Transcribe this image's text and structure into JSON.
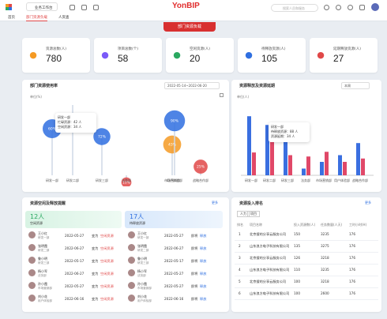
{
  "topbar": {
    "brand": "YonBIP",
    "search_placeholder": "搜索人员和服务",
    "tab_home": "首页",
    "tab_workspace": "业务工作台"
  },
  "nav": {
    "items": [
      "首页",
      "部门资源负载",
      "人资查"
    ]
  },
  "page_title": "部门资源负载",
  "stats": [
    {
      "label": "资源总数(人)",
      "value": "780",
      "icon": "person-icon",
      "color": "#f59a23"
    },
    {
      "label": "项目总数(个)",
      "value": "58",
      "icon": "folder-icon",
      "color": "#7a5af8"
    },
    {
      "label": "空闲资源(人)",
      "value": "20",
      "icon": "coffee-icon",
      "color": "#2aa860"
    },
    {
      "label": "待释放资源(人)",
      "value": "105",
      "icon": "users-icon",
      "color": "#2f6fe0"
    },
    {
      "label": "延期释放资源(人)",
      "value": "27",
      "icon": "alarm-icon",
      "color": "#e04848"
    }
  ],
  "util_panel": {
    "title": "部门资源使用率",
    "date_range": "2022-05-14~2022-06-20",
    "yunit": "单位(%)",
    "tooltip": {
      "title": "研发一部",
      "rows": [
        "忙碌资源：42 人",
        "空闲资源：34 人"
      ]
    },
    "bubbles": [
      {
        "category": "研发一部",
        "value": "60%"
      },
      {
        "category": "研发二部",
        "value": ""
      },
      {
        "category": "研发三部",
        "value": "72%"
      },
      {
        "category": "法务部",
        "value": "10%"
      },
      {
        "category": "市场营销部",
        "value": "43%"
      },
      {
        "category": "用户体验部",
        "value": "90%"
      },
      {
        "category": "战略合作部",
        "value": "25%"
      }
    ]
  },
  "release_panel": {
    "title": "资源释放及资源延期",
    "select": "本周",
    "yunit": "单位(人)",
    "tooltip": {
      "title": "研发一部",
      "rows": [
        "待释放资源：88 人",
        "资源延期：34 人"
      ]
    }
  },
  "chart_data": {
    "type": "bar",
    "categories": [
      "研发一部",
      "研发二部",
      "研发三部",
      "法务部",
      "市场营销部",
      "用户体验部",
      "战略合作部"
    ],
    "series": [
      {
        "name": "待释放资源",
        "values": [
          88,
          75,
          58,
          10,
          20,
          30,
          48
        ]
      },
      {
        "name": "资源延期",
        "values": [
          34,
          72,
          30,
          28,
          35,
          20,
          25
        ]
      }
    ],
    "ylim": [
      0,
      100
    ]
  },
  "idle_panel": {
    "title": "资源空闲及释放提醒",
    "more": "更多",
    "idle_count": "12人",
    "idle_label": "空闲资源",
    "release_count": "17人",
    "release_label": "待释放资源",
    "idle_rows": [
      {
        "name": "王小红",
        "dept": "研发一部",
        "date": "2022-05-27",
        "status": "变为",
        "link": "空闲资源"
      },
      {
        "name": "张明霞",
        "dept": "研发二部",
        "date": "2022-06-27",
        "status": "变为",
        "link": "空闲资源"
      },
      {
        "name": "鲁小明",
        "dept": "研发三部",
        "date": "2022-05-17",
        "status": "变为",
        "link": "空闲资源"
      },
      {
        "name": "杨小军",
        "dept": "法务部",
        "date": "2022-06-27",
        "status": "变为",
        "link": "空闲资源"
      },
      {
        "name": "孙小霞",
        "dept": "市场营销部",
        "date": "2022-05-27",
        "status": "变为",
        "link": "空闲资源"
      },
      {
        "name": "刘小花",
        "dept": "用户体验部",
        "date": "2022-06-16",
        "status": "变为",
        "link": "空闲资源"
      }
    ],
    "release_rows": [
      {
        "name": "王小红",
        "dept": "研发一部",
        "date": "2022-05-27",
        "status": "即将",
        "link": "释放"
      },
      {
        "name": "张明霞",
        "dept": "研发二部",
        "date": "2022-06-27",
        "status": "即将",
        "link": "释放"
      },
      {
        "name": "鲁小明",
        "dept": "研发三部",
        "date": "2022-05-17",
        "status": "即将",
        "link": "释放"
      },
      {
        "name": "杨小军",
        "dept": "法务部",
        "date": "2022-05-27",
        "status": "即将",
        "link": "释放"
      },
      {
        "name": "孙小霞",
        "dept": "市场营销部",
        "date": "2022-05-27",
        "status": "即将",
        "link": "释放"
      },
      {
        "name": "刘小花",
        "dept": "用户体验部",
        "date": "2022-06-16",
        "status": "即将",
        "link": "释放"
      }
    ]
  },
  "ranking_panel": {
    "title": "资源投入排名",
    "more": "更多",
    "tabs": [
      "人力",
      "项目"
    ],
    "headers": [
      "排名",
      "项目名称",
      "投入资源数(人)",
      "任务数量(人天)",
      "工时小时(H)"
    ],
    "rows": [
      {
        "rank": "1",
        "name": "北京搜的分享云服务公司",
        "res": "150",
        "task": "3235",
        "hours": "176"
      },
      {
        "rank": "2",
        "name": "山东浪方电子科技有限公司",
        "res": "135",
        "task": "3275",
        "hours": "176"
      },
      {
        "rank": "3",
        "name": "北京搜的分享云服务公司",
        "res": "126",
        "task": "3218",
        "hours": "176"
      },
      {
        "rank": "4",
        "name": "山东浪方电子科技有限公司",
        "res": "110",
        "task": "3235",
        "hours": "176"
      },
      {
        "rank": "5",
        "name": "北京搜的分享云服务公司",
        "res": "100",
        "task": "3218",
        "hours": "176"
      },
      {
        "rank": "6",
        "name": "山东浪方电子科技有限公司",
        "res": "100",
        "task": "2600",
        "hours": "176"
      }
    ]
  }
}
